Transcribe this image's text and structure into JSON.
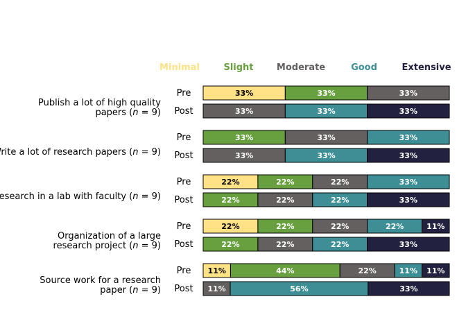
{
  "chart_data": {
    "type": "bar",
    "stacked": "horizontal-100-percent",
    "legend": {
      "placement": "top",
      "entries": [
        {
          "name": "Minimal",
          "color": "#FFE285"
        },
        {
          "name": "Slight",
          "color": "#69A03F"
        },
        {
          "name": "Moderate",
          "color": "#646060"
        },
        {
          "name": "Good",
          "color": "#3E8E95"
        },
        {
          "name": "Extensive",
          "color": "#222140"
        }
      ]
    },
    "text_colors": {
      "Minimal": "#000000",
      "Slight": "#ffffff",
      "Moderate": "#ffffff",
      "Good": "#ffffff",
      "Extensive": "#ffffff"
    },
    "items": [
      {
        "label_lines": [
          [
            "Publish a lot of high quality",
            ""
          ],
          [
            "papers (",
            "n",
            " = 9)"
          ]
        ],
        "rows": [
          {
            "stage": "Pre",
            "segments": [
              {
                "category": "Minimal",
                "value": 33,
                "label": "33%"
              },
              {
                "category": "Slight",
                "value": 33,
                "label": "33%"
              },
              {
                "category": "Moderate",
                "value": 33,
                "label": "33%"
              }
            ]
          },
          {
            "stage": "Post",
            "segments": [
              {
                "category": "Moderate",
                "value": 33,
                "label": "33%"
              },
              {
                "category": "Good",
                "value": 33,
                "label": "33%"
              },
              {
                "category": "Extensive",
                "value": 33,
                "label": "33%"
              }
            ]
          }
        ]
      },
      {
        "label_lines": [
          [
            "Write a lot of research papers (",
            "n",
            " = 9)"
          ]
        ],
        "rows": [
          {
            "stage": "Pre",
            "segments": [
              {
                "category": "Slight",
                "value": 33,
                "label": "33%"
              },
              {
                "category": "Moderate",
                "value": 33,
                "label": "33%"
              },
              {
                "category": "Good",
                "value": 33,
                "label": "33%"
              }
            ]
          },
          {
            "stage": "Post",
            "segments": [
              {
                "category": "Moderate",
                "value": 33,
                "label": "33%"
              },
              {
                "category": "Good",
                "value": 33,
                "label": "33%"
              },
              {
                "category": "Extensive",
                "value": 33,
                "label": "33%"
              }
            ]
          }
        ]
      },
      {
        "label_lines": [
          [
            "Research in a lab with faculty (",
            "n",
            " = 9)"
          ]
        ],
        "rows": [
          {
            "stage": "Pre",
            "segments": [
              {
                "category": "Minimal",
                "value": 22,
                "label": "22%"
              },
              {
                "category": "Slight",
                "value": 22,
                "label": "22%"
              },
              {
                "category": "Moderate",
                "value": 22,
                "label": "22%"
              },
              {
                "category": "Good",
                "value": 33,
                "label": "33%"
              }
            ]
          },
          {
            "stage": "Post",
            "segments": [
              {
                "category": "Slight",
                "value": 22,
                "label": "22%"
              },
              {
                "category": "Moderate",
                "value": 22,
                "label": "22%"
              },
              {
                "category": "Good",
                "value": 22,
                "label": "22%"
              },
              {
                "category": "Extensive",
                "value": 33,
                "label": "33%"
              }
            ]
          }
        ]
      },
      {
        "label_lines": [
          [
            "Organization of a large",
            ""
          ],
          [
            "research project (",
            "n",
            " = 9)"
          ]
        ],
        "rows": [
          {
            "stage": "Pre",
            "segments": [
              {
                "category": "Minimal",
                "value": 22,
                "label": "22%"
              },
              {
                "category": "Slight",
                "value": 22,
                "label": "22%"
              },
              {
                "category": "Moderate",
                "value": 22,
                "label": "22%"
              },
              {
                "category": "Good",
                "value": 22,
                "label": "22%"
              },
              {
                "category": "Extensive",
                "value": 11,
                "label": "11%"
              }
            ]
          },
          {
            "stage": "Post",
            "segments": [
              {
                "category": "Slight",
                "value": 22,
                "label": "22%"
              },
              {
                "category": "Moderate",
                "value": 22,
                "label": "22%"
              },
              {
                "category": "Good",
                "value": 22,
                "label": "22%"
              },
              {
                "category": "Extensive",
                "value": 33,
                "label": "33%"
              }
            ]
          }
        ]
      },
      {
        "label_lines": [
          [
            "Source work for a research",
            ""
          ],
          [
            "paper (",
            "n",
            " = 9)"
          ]
        ],
        "rows": [
          {
            "stage": "Pre",
            "segments": [
              {
                "category": "Minimal",
                "value": 11,
                "label": "11%"
              },
              {
                "category": "Slight",
                "value": 44,
                "label": "44%"
              },
              {
                "category": "Moderate",
                "value": 22,
                "label": "22%"
              },
              {
                "category": "Good",
                "value": 11,
                "label": "11%"
              },
              {
                "category": "Extensive",
                "value": 11,
                "label": "11%"
              }
            ]
          },
          {
            "stage": "Post",
            "segments": [
              {
                "category": "Moderate",
                "value": 11,
                "label": "11%"
              },
              {
                "category": "Good",
                "value": 56,
                "label": "56%"
              },
              {
                "category": "Extensive",
                "value": 33,
                "label": "33%"
              }
            ]
          }
        ]
      }
    ]
  }
}
